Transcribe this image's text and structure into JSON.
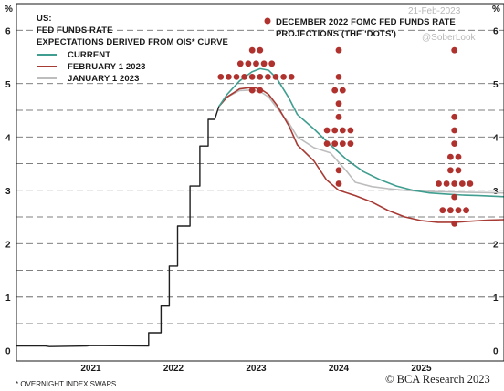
{
  "header": {
    "date_stamp": "21-Feb-2023",
    "watermark": "@SoberLook"
  },
  "legend": {
    "title_lines": [
      "US:",
      "FED FUNDS RATE",
      "EXPECTATIONS DERIVED FROM OIS* CURVE"
    ],
    "dots_title_lines": [
      "DECEMBER 2022 FOMC FED FUNDS RATE",
      "PROJECTIONS (THE 'DOTS')"
    ]
  },
  "footnote": "* OVERNIGHT INDEX SWAPS.",
  "credit": "© BCA Research 2023",
  "colors": {
    "current": "#3f9e8f",
    "february": "#a83a34",
    "january": "#bdbdbd",
    "history": "#1f1f1f",
    "dots": "#b0322e",
    "grid": "#555555"
  },
  "chart_data": {
    "type": "line",
    "title": "",
    "xlabel": "",
    "ylabel": "%",
    "ylim": [
      -0.2,
      6.5
    ],
    "xlim": [
      2020.6,
      2026.5
    ],
    "y_ticks": [
      0,
      1,
      2,
      3,
      4,
      5,
      6
    ],
    "x_ticks": [
      "2021",
      "2022",
      "2023",
      "2024",
      "2025"
    ],
    "grid": true,
    "series": [
      {
        "name": "",
        "role": "history",
        "points": [
          [
            2020.6,
            0.08
          ],
          [
            2020.95,
            0.08
          ],
          [
            2021.0,
            0.07
          ],
          [
            2021.45,
            0.08
          ],
          [
            2021.5,
            0.09
          ],
          [
            2022.2,
            0.08
          ],
          [
            2022.2,
            0.33
          ],
          [
            2022.35,
            0.33
          ],
          [
            2022.35,
            0.83
          ],
          [
            2022.45,
            0.83
          ],
          [
            2022.45,
            1.58
          ],
          [
            2022.55,
            1.58
          ],
          [
            2022.55,
            2.33
          ],
          [
            2022.7,
            2.33
          ],
          [
            2022.7,
            3.08
          ],
          [
            2022.82,
            3.08
          ],
          [
            2022.82,
            3.83
          ],
          [
            2022.92,
            3.83
          ],
          [
            2022.92,
            4.33
          ],
          [
            2023.0,
            4.33
          ],
          [
            2023.05,
            4.57
          ]
        ]
      },
      {
        "name": "CURRENT",
        "role": "current",
        "points": [
          [
            2023.05,
            4.57
          ],
          [
            2023.15,
            4.8
          ],
          [
            2023.3,
            5.05
          ],
          [
            2023.45,
            5.22
          ],
          [
            2023.55,
            5.28
          ],
          [
            2023.65,
            5.25
          ],
          [
            2023.75,
            5.1
          ],
          [
            2023.9,
            4.72
          ],
          [
            2024.0,
            4.42
          ],
          [
            2024.2,
            4.15
          ],
          [
            2024.4,
            3.85
          ],
          [
            2024.6,
            3.57
          ],
          [
            2024.8,
            3.35
          ],
          [
            2025.0,
            3.2
          ],
          [
            2025.2,
            3.08
          ],
          [
            2025.4,
            3.0
          ],
          [
            2025.6,
            2.95
          ],
          [
            2025.8,
            2.93
          ],
          [
            2026.0,
            2.91
          ],
          [
            2026.2,
            2.9
          ],
          [
            2026.5,
            2.88
          ]
        ]
      },
      {
        "name": "FEBRUARY 1 2023",
        "role": "february",
        "points": [
          [
            2023.05,
            4.57
          ],
          [
            2023.15,
            4.75
          ],
          [
            2023.3,
            4.9
          ],
          [
            2023.45,
            4.93
          ],
          [
            2023.55,
            4.9
          ],
          [
            2023.65,
            4.8
          ],
          [
            2023.75,
            4.6
          ],
          [
            2023.9,
            4.2
          ],
          [
            2024.0,
            3.85
          ],
          [
            2024.2,
            3.55
          ],
          [
            2024.35,
            3.2
          ],
          [
            2024.5,
            3.0
          ],
          [
            2024.7,
            2.9
          ],
          [
            2024.9,
            2.78
          ],
          [
            2025.1,
            2.62
          ],
          [
            2025.3,
            2.5
          ],
          [
            2025.5,
            2.43
          ],
          [
            2025.7,
            2.4
          ],
          [
            2025.9,
            2.4
          ],
          [
            2026.1,
            2.42
          ],
          [
            2026.3,
            2.44
          ],
          [
            2026.5,
            2.45
          ]
        ]
      },
      {
        "name": "JANUARY 1 2023",
        "role": "january",
        "points": [
          [
            2023.05,
            4.57
          ],
          [
            2023.15,
            4.75
          ],
          [
            2023.3,
            4.87
          ],
          [
            2023.45,
            4.88
          ],
          [
            2023.55,
            4.85
          ],
          [
            2023.65,
            4.75
          ],
          [
            2023.75,
            4.55
          ],
          [
            2023.9,
            4.25
          ],
          [
            2024.0,
            4.0
          ],
          [
            2024.2,
            3.8
          ],
          [
            2024.4,
            3.7
          ],
          [
            2024.6,
            3.35
          ],
          [
            2024.7,
            3.15
          ],
          [
            2024.9,
            3.07
          ],
          [
            2025.1,
            3.03
          ],
          [
            2025.3,
            3.0
          ],
          [
            2025.5,
            2.98
          ],
          [
            2025.8,
            2.97
          ],
          [
            2026.1,
            2.96
          ],
          [
            2026.5,
            2.95
          ]
        ]
      }
    ],
    "dots": {
      "name": "DECEMBER 2022 FOMC FED FUNDS RATE PROJECTIONS (THE 'DOTS')",
      "columns": [
        {
          "x": 2023.5,
          "levels": [
            [
              5.625,
              2
            ],
            [
              5.375,
              5
            ],
            [
              5.125,
              10
            ],
            [
              4.875,
              2
            ]
          ]
        },
        {
          "x": 2024.5,
          "levels": [
            [
              5.625,
              1
            ],
            [
              5.125,
              1
            ],
            [
              4.875,
              2
            ],
            [
              4.625,
              1
            ],
            [
              4.375,
              1
            ],
            [
              4.125,
              4
            ],
            [
              3.875,
              4
            ],
            [
              3.375,
              1
            ],
            [
              3.125,
              1
            ]
          ]
        },
        {
          "x": 2025.9,
          "levels": [
            [
              5.625,
              1
            ],
            [
              4.375,
              1
            ],
            [
              4.125,
              1
            ],
            [
              3.875,
              1
            ],
            [
              3.625,
              2
            ],
            [
              3.375,
              2
            ],
            [
              3.125,
              5
            ],
            [
              2.875,
              1
            ],
            [
              2.625,
              4
            ],
            [
              2.375,
              1
            ]
          ]
        }
      ]
    }
  }
}
